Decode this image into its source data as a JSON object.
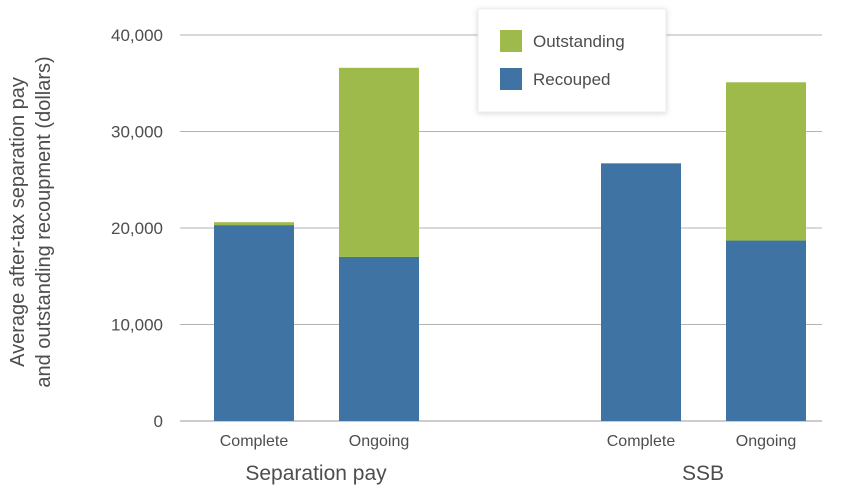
{
  "chart_data": {
    "type": "bar",
    "stacked": true,
    "ylabel": [
      "Average after-tax separation pay",
      "and outstanding recoupment (dollars)"
    ],
    "ylim": [
      0,
      40000
    ],
    "yticks": [
      {
        "value": 0,
        "label": "0"
      },
      {
        "value": 10000,
        "label": "10,000"
      },
      {
        "value": 20000,
        "label": "20,000"
      },
      {
        "value": 30000,
        "label": "30,000"
      },
      {
        "value": 40000,
        "label": "40,000"
      }
    ],
    "groups": [
      "Separation pay",
      "SSB"
    ],
    "categories": [
      "Complete",
      "Ongoing",
      "Complete",
      "Ongoing"
    ],
    "category_group": [
      0,
      0,
      1,
      1
    ],
    "series": [
      {
        "name": "Recouped",
        "color": "#3f73a3",
        "values": [
          20300,
          17000,
          26700,
          18700
        ]
      },
      {
        "name": "Outstanding",
        "color": "#9dba4a",
        "values": [
          300,
          19600,
          0,
          16400
        ]
      }
    ],
    "legend": {
      "placement": "top-center",
      "order": [
        "Outstanding",
        "Recouped"
      ]
    },
    "grid": true,
    "colors": {
      "gridline": "#b3b3b3",
      "text": "#4d4d4d",
      "axis": "#999999"
    }
  }
}
